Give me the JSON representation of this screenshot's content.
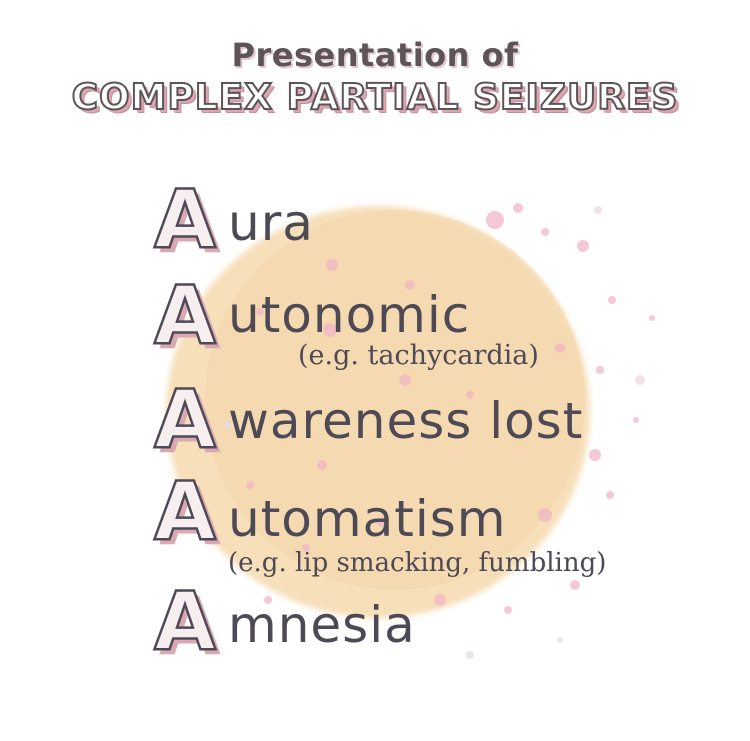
{
  "title": {
    "line1": "Presentation of",
    "line2": "COMPLEX PARTIAL SEIZURES"
  },
  "items": [
    {
      "letter": "A",
      "rest": "ura",
      "note": ""
    },
    {
      "letter": "A",
      "rest": "utonomic",
      "note": "(e.g. tachycardia)"
    },
    {
      "letter": "A",
      "rest": "wareness lost",
      "note": ""
    },
    {
      "letter": "A",
      "rest": "utomatism",
      "note": "(e.g. lip smacking, fumbling)"
    },
    {
      "letter": "A",
      "rest": "mnesia",
      "note": ""
    }
  ],
  "colors": {
    "text": "#4e4a55",
    "blob": "#f6dcb2",
    "accent": "#dfa9b6"
  }
}
